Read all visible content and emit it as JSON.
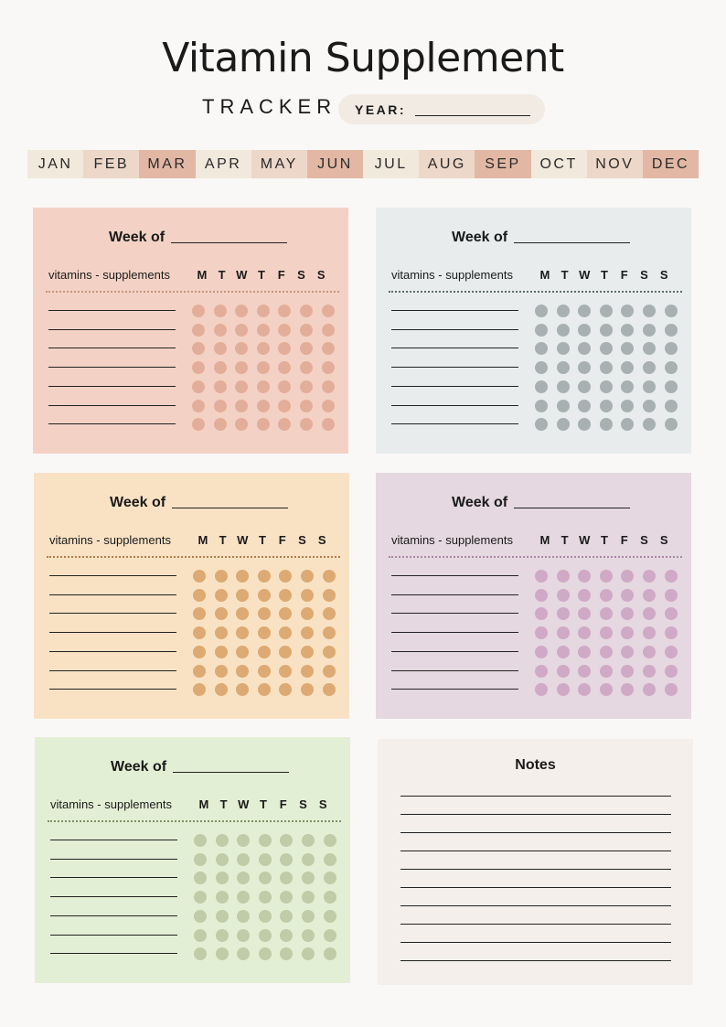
{
  "header": {
    "title": "Vitamin Supplement",
    "subtitle": "TRACKER",
    "year_label": "YEAR:"
  },
  "months": [
    {
      "label": "JAN",
      "color": "#f1e9dc"
    },
    {
      "label": "FEB",
      "color": "#ecd7c8"
    },
    {
      "label": "MAR",
      "color": "#e2b8a4"
    },
    {
      "label": "APR",
      "color": "#f1e9dc"
    },
    {
      "label": "MAY",
      "color": "#ecd7c8"
    },
    {
      "label": "JUN",
      "color": "#e2b8a4"
    },
    {
      "label": "JUL",
      "color": "#f1e9dc"
    },
    {
      "label": "AUG",
      "color": "#ecd7c8"
    },
    {
      "label": "SEP",
      "color": "#e2b8a4"
    },
    {
      "label": "OCT",
      "color": "#f1e9dc"
    },
    {
      "label": "NOV",
      "color": "#ecd7c8"
    },
    {
      "label": "DEC",
      "color": "#e2b8a4"
    }
  ],
  "week_card": {
    "week_label": "Week of",
    "column_label": "vitamins - supplements",
    "days": [
      "M",
      "T",
      "W",
      "T",
      "F",
      "S",
      "S"
    ],
    "row_count": 7
  },
  "cards": [
    {
      "bg": "#f3d2c5",
      "dot": "#e3ae99",
      "sep": "#c79580"
    },
    {
      "bg": "#e8eced",
      "dot": "#a9b0b2",
      "sep": "#5f6b68"
    },
    {
      "bg": "#f9e2c4",
      "dot": "#dcaa72",
      "sep": "#b47a4a"
    },
    {
      "bg": "#e5d8e0",
      "dot": "#d0a9c6",
      "sep": "#a987a6"
    },
    {
      "bg": "#e3efd4",
      "dot": "#bfcca7",
      "sep": "#7b9266"
    }
  ],
  "notes": {
    "title": "Notes",
    "line_count": 10
  }
}
